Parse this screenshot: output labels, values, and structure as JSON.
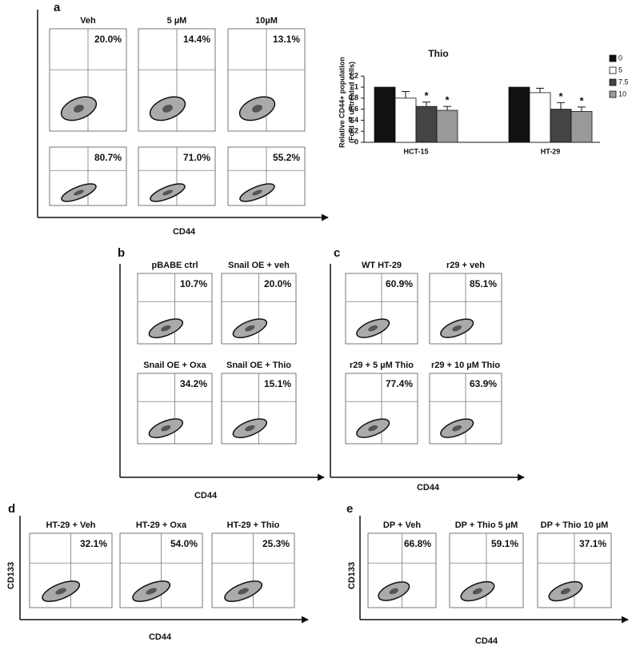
{
  "panels": [
    {
      "label": "a",
      "x_axis": "CD44",
      "plots": [
        {
          "title": "Veh",
          "value": "20.0%"
        },
        {
          "title": "5 µM",
          "value": "14.4%"
        },
        {
          "title": "10µM",
          "value": "13.1%"
        },
        {
          "value": "80.7%"
        },
        {
          "value": "71.0%"
        },
        {
          "value": "55.2%"
        }
      ]
    },
    {
      "label": "b",
      "x_axis": "CD44",
      "plots": [
        {
          "title": "pBABE ctrl",
          "value": "10.7%"
        },
        {
          "title": "Snail OE + veh",
          "value": "20.0%"
        },
        {
          "title": "Snail OE + Oxa",
          "value": "34.2%"
        },
        {
          "title": "Snail OE + Thio",
          "value": "15.1%"
        }
      ]
    },
    {
      "label": "c",
      "x_axis": "CD44",
      "plots": [
        {
          "title": "WT HT-29",
          "value": "60.9%"
        },
        {
          "title": "r29 + veh",
          "value": "85.1%"
        },
        {
          "title": "r29 + 5 µM Thio",
          "value": "77.4%"
        },
        {
          "title": "r29 + 10 µM Thio",
          "value": "63.9%"
        }
      ]
    },
    {
      "label": "d",
      "x_axis": "CD44",
      "y_axis": "CD133",
      "plots": [
        {
          "title": "HT-29 + Veh",
          "value": "32.1%"
        },
        {
          "title": "HT-29 + Oxa",
          "value": "54.0%"
        },
        {
          "title": "HT-29 + Thio",
          "value": "25.3%"
        }
      ]
    },
    {
      "label": "e",
      "x_axis": "CD44",
      "y_axis": "CD133",
      "plots": [
        {
          "title": "DP + Veh",
          "value": "66.8%"
        },
        {
          "title": "DP + Thio 5 µM",
          "value": "59.1%"
        },
        {
          "title": "DP + Thio 10 µM",
          "value": "37.1%"
        }
      ]
    }
  ],
  "chart_data": {
    "type": "bar",
    "title": "Thio",
    "y_label": [
      "Relative CD44+ population",
      "(Fold of untreated cells)"
    ],
    "categories": [
      "HCT-15",
      "HT-29"
    ],
    "series": [
      {
        "name": "0",
        "color": "#111111",
        "values": [
          1,
          1
        ]
      },
      {
        "name": "5",
        "color": "#ffffff",
        "values": [
          0.8,
          0.9
        ],
        "errors": [
          0.12,
          0.08
        ]
      },
      {
        "name": "7.5",
        "color": "#444444",
        "values": [
          0.65,
          0.6
        ],
        "errors": [
          0.08,
          0.12
        ],
        "markers": [
          "*",
          "*"
        ]
      },
      {
        "name": "10",
        "color": "#999999",
        "values": [
          0.58,
          0.56
        ],
        "errors": [
          0.07,
          0.08
        ],
        "markers": [
          "*",
          "*"
        ]
      }
    ],
    "ylim": [
      0,
      1.2
    ],
    "yticks": [
      0,
      0.2,
      0.4,
      0.6,
      0.8,
      1,
      1.2
    ]
  }
}
